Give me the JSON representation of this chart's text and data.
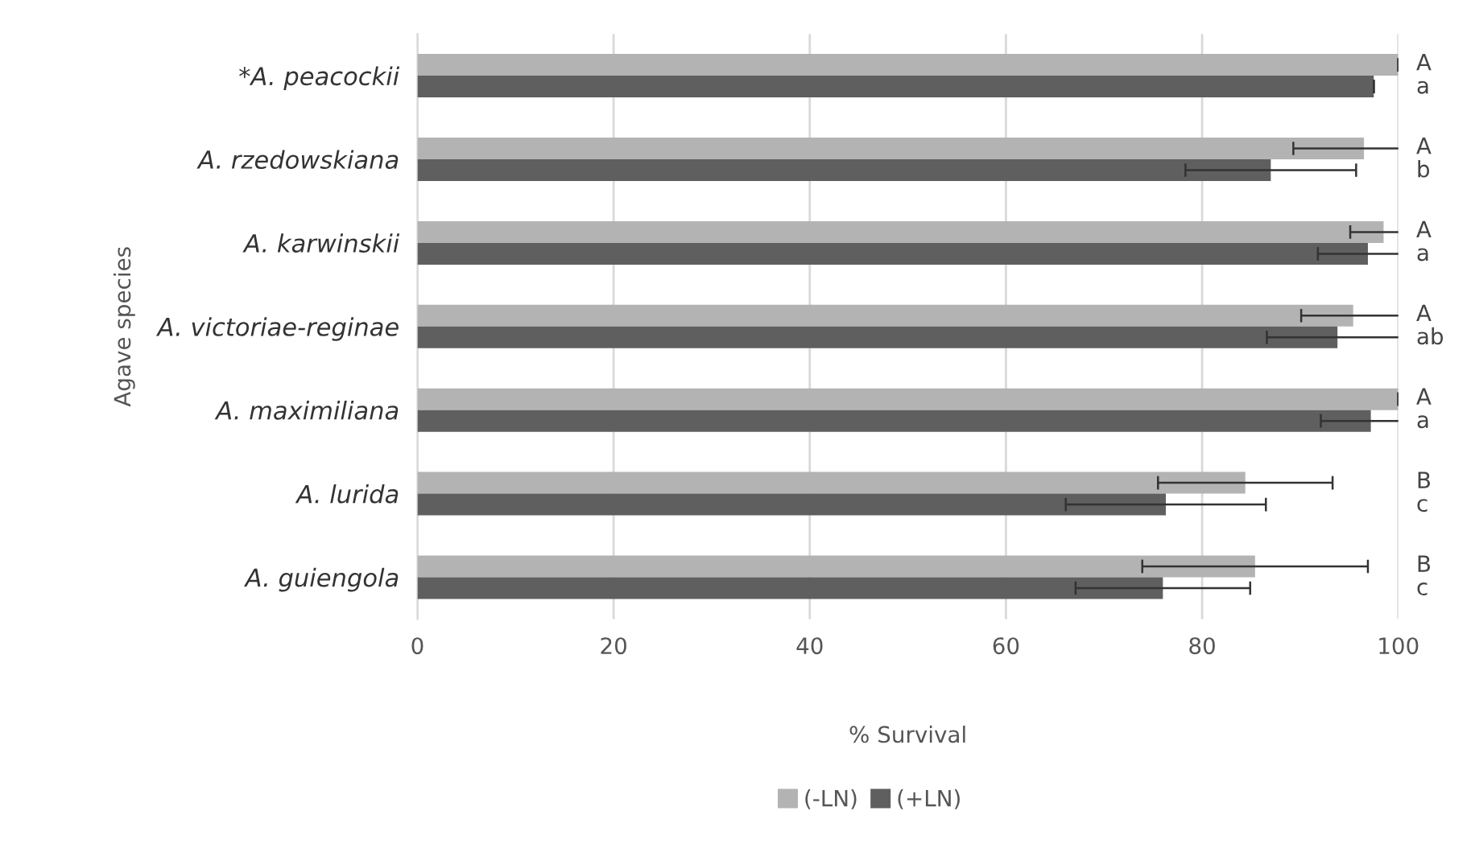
{
  "chart_data": {
    "type": "bar",
    "orientation": "horizontal",
    "xlabel": "% Survival",
    "ylabel": "Agave species",
    "categories": [
      "*A. peacockii",
      "A. rzedowskiana",
      "A. karwinskii",
      "A. victoriae-reginae",
      "A. maximiliana",
      "A. lurida",
      "A. guiengola"
    ],
    "series": [
      {
        "name": "(-LN)",
        "color": "#b3b3b3",
        "values": [
          100,
          96.5,
          98.5,
          95.4,
          100,
          84.4,
          85.4
        ],
        "errors": [
          0,
          7.2,
          3.4,
          5.3,
          0,
          8.9,
          11.5
        ]
      },
      {
        "name": "(+LN)",
        "color": "#5f5f5f",
        "values": [
          97.5,
          87,
          96.9,
          93.8,
          97.2,
          76.3,
          76
        ],
        "errors": [
          null,
          8.7,
          5.1,
          7.2,
          5.1,
          10.2,
          8.9
        ]
      }
    ],
    "annotations": [
      "A\na",
      "A\nb",
      "A\na",
      "A\nab",
      "A\na",
      "B\nc",
      "B\nc"
    ],
    "xlim": [
      0,
      100
    ],
    "xticks": [
      0,
      20,
      40,
      60,
      80,
      100
    ],
    "grid": "x",
    "legend": "bottom"
  }
}
